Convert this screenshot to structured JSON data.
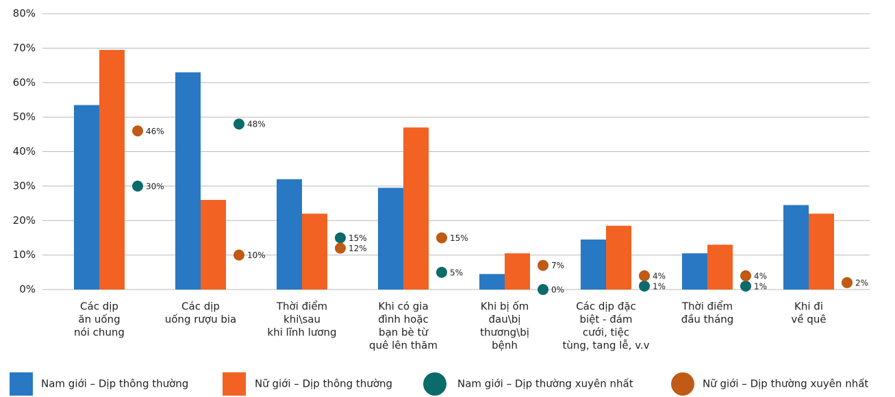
{
  "chart_data": {
    "type": "bar",
    "categories": [
      [
        "Các dịp",
        "ăn uống",
        "nói chung"
      ],
      [
        "Các dịp",
        "uống rượu bia"
      ],
      [
        "Thời điểm",
        "khi\\sau",
        "khi lĩnh lương"
      ],
      [
        "Khi có gia",
        "đình hoặc",
        "bạn bè từ",
        "quê lên thăm"
      ],
      [
        "Khi bị ốm",
        "đau\\bị",
        "thương\\bị",
        "bệnh"
      ],
      [
        "Các dịp đặc",
        "biệt - đám",
        "cưới, tiệc",
        "tùng, tang lễ, v.v"
      ],
      [
        "Thời điểm",
        "đầu tháng"
      ],
      [
        "Khi đi",
        "về quê"
      ]
    ],
    "series": [
      {
        "name": "Nam giới – Dịp thông thường",
        "color": "#2878c3",
        "marker": "bar",
        "values": [
          53.5,
          63,
          32,
          29.5,
          4.5,
          14.5,
          10.5,
          24.5
        ]
      },
      {
        "name": "Nữ giới – Dịp thông thường",
        "color": "#f26222",
        "marker": "bar",
        "values": [
          69.5,
          26,
          22,
          47,
          10.5,
          18.5,
          13,
          22
        ]
      },
      {
        "name": "Nam giới – Dịp thường xuyên nhất",
        "color": "#0b6b6a",
        "marker": "dot",
        "values": [
          30,
          48,
          15,
          5,
          0,
          1,
          1,
          null
        ],
        "value_labels": [
          "30%",
          "48%",
          "15%",
          "5%",
          "0%",
          "1%",
          "1%",
          null
        ]
      },
      {
        "name": "Nữ giới – Dịp thường xuyên nhất",
        "color": "#c05a14",
        "marker": "dot",
        "values": [
          46,
          10,
          12,
          15,
          7,
          4,
          4,
          2
        ],
        "value_labels": [
          "46%",
          "10%",
          "12%",
          "15%",
          "7%",
          "4%",
          "4%",
          "2%"
        ]
      }
    ],
    "ylim": [
      0,
      80
    ],
    "yticks": [
      {
        "value": 0,
        "label": "0%"
      },
      {
        "value": 10,
        "label": "10%"
      },
      {
        "value": 20,
        "label": "20%"
      },
      {
        "value": 30,
        "label": "30%"
      },
      {
        "value": 40,
        "label": "40%"
      },
      {
        "value": 50,
        "label": "50%"
      },
      {
        "value": 60,
        "label": "60%"
      },
      {
        "value": 70,
        "label": "70%"
      },
      {
        "value": 80,
        "label": "80%"
      }
    ],
    "grid": true
  }
}
